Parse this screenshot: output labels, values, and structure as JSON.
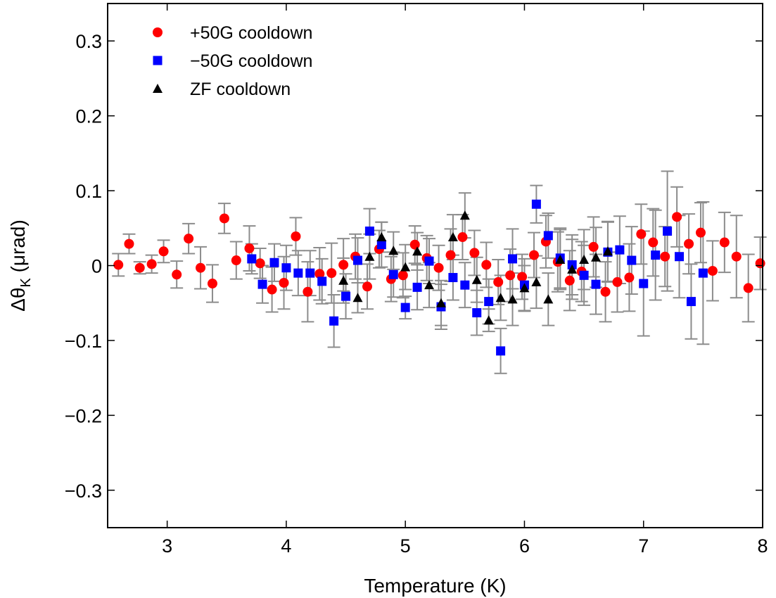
{
  "chart_data": {
    "type": "scatter",
    "title": "",
    "xlabel": "Temperature (K)",
    "ylabel": {
      "main": "Δθ",
      "sub": "K",
      "unit": " (μrad)"
    },
    "xlim": [
      2.5,
      8.0
    ],
    "ylim": [
      -0.35,
      0.35
    ],
    "xticks": [
      3,
      4,
      5,
      6,
      7,
      8
    ],
    "xtick_labels": [
      "3",
      "4",
      "5",
      "6",
      "7",
      "8"
    ],
    "yticks": [
      -0.3,
      -0.2,
      -0.1,
      0,
      0.1,
      0.2,
      0.3
    ],
    "ytick_labels": [
      "−0.3",
      "−0.2",
      "−0.1",
      "0",
      "0.1",
      "0.2",
      "0.3"
    ],
    "grid": false,
    "legend_position": "top-left",
    "error_bar_color": "#8c8c8c",
    "series": [
      {
        "name": "+50G cooldown",
        "marker": "circle",
        "color": "#ff0000",
        "points": [
          {
            "x": 2.59,
            "y": 0.001,
            "err": 0.015
          },
          {
            "x": 2.68,
            "y": 0.029,
            "err": 0.013
          },
          {
            "x": 2.77,
            "y": -0.003,
            "err": 0.008
          },
          {
            "x": 2.87,
            "y": 0.002,
            "err": 0.012
          },
          {
            "x": 2.97,
            "y": 0.019,
            "err": 0.015
          },
          {
            "x": 3.08,
            "y": -0.012,
            "err": 0.018
          },
          {
            "x": 3.18,
            "y": 0.036,
            "err": 0.02
          },
          {
            "x": 3.28,
            "y": -0.003,
            "err": 0.028
          },
          {
            "x": 3.38,
            "y": -0.024,
            "err": 0.025
          },
          {
            "x": 3.48,
            "y": 0.063,
            "err": 0.02
          },
          {
            "x": 3.58,
            "y": 0.007,
            "err": 0.025
          },
          {
            "x": 3.69,
            "y": 0.023,
            "err": 0.03
          },
          {
            "x": 3.78,
            "y": 0.003,
            "err": 0.02
          },
          {
            "x": 3.88,
            "y": -0.032,
            "err": 0.03
          },
          {
            "x": 3.98,
            "y": -0.023,
            "err": 0.035
          },
          {
            "x": 4.08,
            "y": 0.039,
            "err": 0.025
          },
          {
            "x": 4.18,
            "y": -0.035,
            "err": 0.04
          },
          {
            "x": 4.28,
            "y": -0.011,
            "err": 0.035
          },
          {
            "x": 4.38,
            "y": -0.01,
            "err": 0.04
          },
          {
            "x": 4.48,
            "y": 0.001,
            "err": 0.035
          },
          {
            "x": 4.58,
            "y": 0.012,
            "err": 0.03
          },
          {
            "x": 4.68,
            "y": -0.028,
            "err": 0.03
          },
          {
            "x": 4.78,
            "y": 0.022,
            "err": 0.025
          },
          {
            "x": 4.88,
            "y": -0.018,
            "err": 0.03
          },
          {
            "x": 4.98,
            "y": -0.013,
            "err": 0.03
          },
          {
            "x": 5.08,
            "y": 0.028,
            "err": 0.025
          },
          {
            "x": 5.18,
            "y": 0.01,
            "err": 0.03
          },
          {
            "x": 5.28,
            "y": -0.003,
            "err": 0.03
          },
          {
            "x": 5.38,
            "y": 0.014,
            "err": 0.035
          },
          {
            "x": 5.48,
            "y": 0.038,
            "err": 0.03
          },
          {
            "x": 5.58,
            "y": 0.017,
            "err": 0.03
          },
          {
            "x": 5.68,
            "y": 0.001,
            "err": 0.03
          },
          {
            "x": 5.78,
            "y": -0.022,
            "err": 0.03
          },
          {
            "x": 5.88,
            "y": -0.013,
            "err": 0.035
          },
          {
            "x": 5.98,
            "y": -0.015,
            "err": 0.03
          },
          {
            "x": 6.08,
            "y": 0.014,
            "err": 0.03
          },
          {
            "x": 6.18,
            "y": 0.032,
            "err": 0.035
          },
          {
            "x": 6.28,
            "y": 0.005,
            "err": 0.04
          },
          {
            "x": 6.38,
            "y": -0.02,
            "err": 0.04
          },
          {
            "x": 6.48,
            "y": -0.008,
            "err": 0.04
          },
          {
            "x": 6.58,
            "y": 0.025,
            "err": 0.04
          },
          {
            "x": 6.68,
            "y": -0.035,
            "err": 0.04
          },
          {
            "x": 6.78,
            "y": -0.022,
            "err": 0.04
          },
          {
            "x": 6.88,
            "y": -0.016,
            "err": 0.045
          },
          {
            "x": 6.98,
            "y": 0.042,
            "err": 0.04
          },
          {
            "x": 7.08,
            "y": 0.031,
            "err": 0.045
          },
          {
            "x": 7.18,
            "y": 0.012,
            "err": 0.04
          },
          {
            "x": 7.28,
            "y": 0.065,
            "err": 0.04
          },
          {
            "x": 7.38,
            "y": 0.029,
            "err": 0.04
          },
          {
            "x": 7.48,
            "y": 0.044,
            "err": 0.04
          },
          {
            "x": 7.58,
            "y": -0.007,
            "err": 0.04
          },
          {
            "x": 7.68,
            "y": 0.031,
            "err": 0.04
          },
          {
            "x": 7.78,
            "y": 0.012,
            "err": 0.055
          },
          {
            "x": 7.88,
            "y": -0.03,
            "err": 0.045
          },
          {
            "x": 7.98,
            "y": 0.003,
            "err": 0.035
          }
        ]
      },
      {
        "name": "−50G cooldown",
        "marker": "square",
        "color": "#0000ff",
        "points": [
          {
            "x": 3.71,
            "y": 0.009,
            "err": 0.02
          },
          {
            "x": 3.8,
            "y": -0.025,
            "err": 0.025
          },
          {
            "x": 3.9,
            "y": 0.004,
            "err": 0.025
          },
          {
            "x": 4.0,
            "y": -0.003,
            "err": 0.03
          },
          {
            "x": 4.1,
            "y": -0.01,
            "err": 0.03
          },
          {
            "x": 4.2,
            "y": -0.01,
            "err": 0.03
          },
          {
            "x": 4.3,
            "y": -0.021,
            "err": 0.03
          },
          {
            "x": 4.4,
            "y": -0.074,
            "err": 0.035
          },
          {
            "x": 4.5,
            "y": -0.041,
            "err": 0.03
          },
          {
            "x": 4.6,
            "y": 0.007,
            "err": 0.03
          },
          {
            "x": 4.7,
            "y": 0.046,
            "err": 0.03
          },
          {
            "x": 4.8,
            "y": 0.028,
            "err": 0.03
          },
          {
            "x": 4.9,
            "y": -0.012,
            "err": 0.03
          },
          {
            "x": 5.0,
            "y": -0.056,
            "err": 0.015
          },
          {
            "x": 5.1,
            "y": -0.029,
            "err": 0.03
          },
          {
            "x": 5.2,
            "y": 0.006,
            "err": 0.03
          },
          {
            "x": 5.3,
            "y": -0.055,
            "err": 0.03
          },
          {
            "x": 5.4,
            "y": -0.016,
            "err": 0.03
          },
          {
            "x": 5.5,
            "y": -0.026,
            "err": 0.03
          },
          {
            "x": 5.6,
            "y": -0.063,
            "err": 0.03
          },
          {
            "x": 5.7,
            "y": -0.048,
            "err": 0.03
          },
          {
            "x": 5.8,
            "y": -0.114,
            "err": 0.03
          },
          {
            "x": 5.9,
            "y": 0.009,
            "err": 0.04
          },
          {
            "x": 6.0,
            "y": -0.026,
            "err": 0.035
          },
          {
            "x": 6.1,
            "y": 0.082,
            "err": 0.025
          },
          {
            "x": 6.2,
            "y": 0.04,
            "err": 0.03
          },
          {
            "x": 6.3,
            "y": 0.01,
            "err": 0.04
          },
          {
            "x": 6.4,
            "y": 0.001,
            "err": 0.04
          },
          {
            "x": 6.5,
            "y": -0.013,
            "err": 0.04
          },
          {
            "x": 6.6,
            "y": -0.025,
            "err": 0.04
          },
          {
            "x": 6.7,
            "y": 0.018,
            "err": 0.04
          },
          {
            "x": 6.8,
            "y": 0.021,
            "err": 0.045
          },
          {
            "x": 6.9,
            "y": 0.007,
            "err": 0.045
          },
          {
            "x": 7.0,
            "y": -0.024,
            "err": 0.07
          },
          {
            "x": 7.1,
            "y": 0.014,
            "err": 0.06
          },
          {
            "x": 7.2,
            "y": 0.046,
            "err": 0.08
          },
          {
            "x": 7.3,
            "y": 0.012,
            "err": 0.055
          },
          {
            "x": 7.4,
            "y": -0.048,
            "err": 0.05
          },
          {
            "x": 7.5,
            "y": -0.01,
            "err": 0.095
          },
          {
            "x": 7.6,
            "y": 0.0,
            "err": 0.0
          }
        ]
      },
      {
        "name": "ZF cooldown",
        "marker": "triangle",
        "color": "#000000",
        "points": [
          {
            "x": 4.48,
            "y": -0.02,
            "err": 0.03
          },
          {
            "x": 4.6,
            "y": -0.043,
            "err": 0.02
          },
          {
            "x": 4.7,
            "y": 0.012,
            "err": 0.03
          },
          {
            "x": 4.8,
            "y": 0.038,
            "err": 0.02
          },
          {
            "x": 4.9,
            "y": 0.02,
            "err": 0.025
          },
          {
            "x": 5.0,
            "y": -0.002,
            "err": 0.03
          },
          {
            "x": 5.1,
            "y": 0.019,
            "err": 0.025
          },
          {
            "x": 5.2,
            "y": -0.026,
            "err": 0.03
          },
          {
            "x": 5.3,
            "y": -0.05,
            "err": 0.03
          },
          {
            "x": 5.4,
            "y": 0.038,
            "err": 0.03
          },
          {
            "x": 5.5,
            "y": 0.067,
            "err": 0.03
          },
          {
            "x": 5.6,
            "y": -0.019,
            "err": 0.03
          },
          {
            "x": 5.7,
            "y": -0.073,
            "err": 0.015
          },
          {
            "x": 5.8,
            "y": -0.043,
            "err": 0.03
          },
          {
            "x": 5.9,
            "y": -0.045,
            "err": 0.035
          },
          {
            "x": 6.0,
            "y": -0.03,
            "err": 0.03
          },
          {
            "x": 6.1,
            "y": -0.022,
            "err": 0.035
          },
          {
            "x": 6.2,
            "y": -0.045,
            "err": 0.035
          },
          {
            "x": 6.3,
            "y": 0.008,
            "err": 0.04
          },
          {
            "x": 6.4,
            "y": -0.005,
            "err": 0.04
          },
          {
            "x": 6.5,
            "y": 0.008,
            "err": 0.04
          },
          {
            "x": 6.6,
            "y": 0.011,
            "err": 0.04
          },
          {
            "x": 6.7,
            "y": 0.019,
            "err": 0.04
          }
        ]
      }
    ]
  }
}
